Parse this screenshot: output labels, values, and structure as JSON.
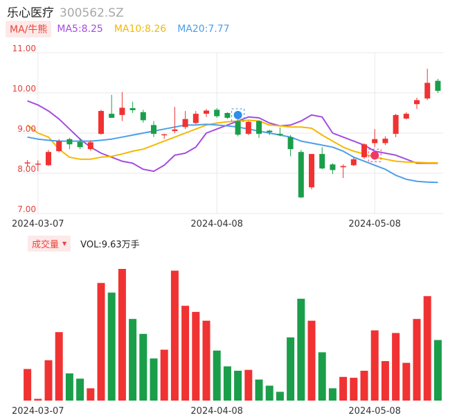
{
  "header": {
    "name": "乐心医疗",
    "code": "300562.SZ"
  },
  "legend": {
    "tag": "MA/牛熊",
    "ma5": {
      "label": "MA5:8.25",
      "color": "#a44be0"
    },
    "ma10": {
      "label": "MA10:8.26",
      "color": "#f5b800"
    },
    "ma20": {
      "label": "MA20:7.77",
      "color": "#4b9fe8"
    }
  },
  "volume_header": {
    "tag": "成交量",
    "value": "VOL:9.63万手"
  },
  "colors": {
    "up": "#f03232",
    "down": "#1a9e4a",
    "grid": "#e8e8e8",
    "axis_label": "#e0403a"
  },
  "icons": {
    "bull_marker": "bull-icon",
    "bear_marker": "bear-icon"
  },
  "chart_data": [
    {
      "type": "candlestick",
      "ylim": [
        7.0,
        11.0
      ],
      "ytick_labels": [
        "11.00",
        "10.00",
        "9.00",
        "8.00",
        "7.00"
      ],
      "xtick_labels": [
        {
          "label": "2024-03-07",
          "index": 1
        },
        {
          "label": "2024-04-08",
          "index": 18
        },
        {
          "label": "2024-05-08",
          "index": 33
        }
      ],
      "candles": [
        {
          "o": 8.25,
          "h": 8.33,
          "l": 8.18,
          "c": 8.27
        },
        {
          "o": 8.22,
          "h": 8.32,
          "l": 8.05,
          "c": 8.24
        },
        {
          "o": 8.2,
          "h": 8.58,
          "l": 8.18,
          "c": 8.53
        },
        {
          "o": 8.55,
          "h": 8.85,
          "l": 8.52,
          "c": 8.8
        },
        {
          "o": 8.85,
          "h": 8.88,
          "l": 8.6,
          "c": 8.72
        },
        {
          "o": 8.78,
          "h": 8.88,
          "l": 8.6,
          "c": 8.65
        },
        {
          "o": 8.6,
          "h": 8.82,
          "l": 8.56,
          "c": 8.77
        },
        {
          "o": 8.98,
          "h": 9.58,
          "l": 8.96,
          "c": 9.55
        },
        {
          "o": 9.48,
          "h": 9.95,
          "l": 9.38,
          "c": 9.38
        },
        {
          "o": 9.45,
          "h": 10.02,
          "l": 9.3,
          "c": 9.63
        },
        {
          "o": 9.62,
          "h": 9.78,
          "l": 9.5,
          "c": 9.57
        },
        {
          "o": 9.52,
          "h": 9.58,
          "l": 9.26,
          "c": 9.32
        },
        {
          "o": 9.2,
          "h": 9.3,
          "l": 8.9,
          "c": 8.98
        },
        {
          "o": 8.95,
          "h": 8.98,
          "l": 8.86,
          "c": 8.97
        },
        {
          "o": 9.05,
          "h": 9.65,
          "l": 9.0,
          "c": 9.09
        },
        {
          "o": 9.15,
          "h": 9.55,
          "l": 9.1,
          "c": 9.35
        },
        {
          "o": 9.25,
          "h": 9.55,
          "l": 9.22,
          "c": 9.48
        },
        {
          "o": 9.48,
          "h": 9.6,
          "l": 9.4,
          "c": 9.56
        },
        {
          "o": 9.58,
          "h": 9.62,
          "l": 9.38,
          "c": 9.42
        },
        {
          "o": 9.5,
          "h": 9.52,
          "l": 9.35,
          "c": 9.38
        },
        {
          "o": 9.3,
          "h": 9.38,
          "l": 8.92,
          "c": 8.96
        },
        {
          "o": 8.98,
          "h": 9.3,
          "l": 8.95,
          "c": 9.28
        },
        {
          "o": 9.3,
          "h": 9.32,
          "l": 8.88,
          "c": 8.98
        },
        {
          "o": 9.06,
          "h": 9.08,
          "l": 8.95,
          "c": 9.02
        },
        {
          "o": 8.98,
          "h": 9.14,
          "l": 8.92,
          "c": 8.95
        },
        {
          "o": 8.9,
          "h": 8.95,
          "l": 8.42,
          "c": 8.6
        },
        {
          "o": 8.53,
          "h": 8.58,
          "l": 7.38,
          "c": 7.4
        },
        {
          "o": 7.65,
          "h": 8.48,
          "l": 7.6,
          "c": 8.48
        },
        {
          "o": 8.48,
          "h": 8.65,
          "l": 8.1,
          "c": 8.12
        },
        {
          "o": 8.22,
          "h": 8.25,
          "l": 7.98,
          "c": 8.08
        },
        {
          "o": 8.15,
          "h": 8.22,
          "l": 7.88,
          "c": 8.18
        },
        {
          "o": 8.2,
          "h": 8.4,
          "l": 8.18,
          "c": 8.35
        },
        {
          "o": 8.4,
          "h": 8.75,
          "l": 8.36,
          "c": 8.72
        },
        {
          "o": 8.75,
          "h": 9.1,
          "l": 8.65,
          "c": 8.85
        },
        {
          "o": 8.75,
          "h": 8.92,
          "l": 8.7,
          "c": 8.86
        },
        {
          "o": 8.98,
          "h": 9.48,
          "l": 8.9,
          "c": 9.45
        },
        {
          "o": 9.36,
          "h": 9.52,
          "l": 9.34,
          "c": 9.48
        },
        {
          "o": 9.72,
          "h": 9.88,
          "l": 9.6,
          "c": 9.82
        },
        {
          "o": 9.86,
          "h": 10.6,
          "l": 9.82,
          "c": 10.25
        },
        {
          "o": 10.3,
          "h": 10.35,
          "l": 10.0,
          "c": 10.05
        }
      ],
      "ma_series": [
        {
          "name": "MA5",
          "values": [
            9.8,
            9.7,
            9.55,
            9.35,
            9.1,
            8.85,
            8.65,
            8.5,
            8.4,
            8.3,
            8.25,
            8.1,
            8.05,
            8.2,
            8.45,
            8.5,
            8.65,
            9.0,
            9.1,
            9.2,
            9.3,
            9.4,
            9.38,
            9.25,
            9.18,
            9.2,
            9.3,
            9.45,
            9.4,
            9.0,
            8.9,
            8.8,
            8.7,
            8.55,
            8.5,
            8.45,
            8.35,
            8.25,
            8.25,
            8.25
          ]
        },
        {
          "name": "MA10",
          "values": [
            9.2,
            9.0,
            8.9,
            8.6,
            8.4,
            8.35,
            8.35,
            8.4,
            8.42,
            8.48,
            8.55,
            8.6,
            8.7,
            8.8,
            8.9,
            9.0,
            9.1,
            9.2,
            9.25,
            9.28,
            9.3,
            9.32,
            9.3,
            9.2,
            9.18,
            9.15,
            9.15,
            9.12,
            8.95,
            8.8,
            8.65,
            8.55,
            8.48,
            8.4,
            8.35,
            8.3,
            8.28,
            8.27,
            8.26,
            8.26
          ]
        },
        {
          "name": "MA20",
          "values": [
            8.9,
            8.85,
            8.82,
            8.8,
            8.8,
            8.8,
            8.8,
            8.82,
            8.85,
            8.9,
            8.95,
            9.0,
            9.05,
            9.1,
            9.15,
            9.2,
            9.2,
            9.22,
            9.2,
            9.18,
            9.15,
            9.1,
            9.05,
            9.0,
            8.95,
            8.9,
            8.8,
            8.75,
            8.7,
            8.65,
            8.55,
            8.4,
            8.3,
            8.2,
            8.1,
            7.95,
            7.85,
            7.8,
            7.78,
            7.77
          ]
        }
      ],
      "markers": [
        {
          "kind": "bull",
          "index": 20
        },
        {
          "kind": "bear",
          "index": 33
        }
      ]
    },
    {
      "type": "bar",
      "title": "成交量",
      "ylim": [
        0,
        15
      ],
      "values": [
        3.6,
        0.2,
        4.6,
        7.8,
        3.1,
        2.5,
        1.4,
        13.4,
        12.3,
        15.0,
        9.3,
        7.6,
        4.8,
        5.8,
        14.8,
        10.8,
        10.1,
        9.1,
        5.7,
        3.9,
        3.4,
        3.5,
        2.4,
        1.7,
        1.0,
        7.2,
        11.6,
        9.1,
        5.5,
        1.4,
        2.7,
        2.6,
        3.4,
        8.0,
        4.5,
        7.7,
        4.3,
        9.3,
        11.9,
        6.9
      ]
    }
  ]
}
